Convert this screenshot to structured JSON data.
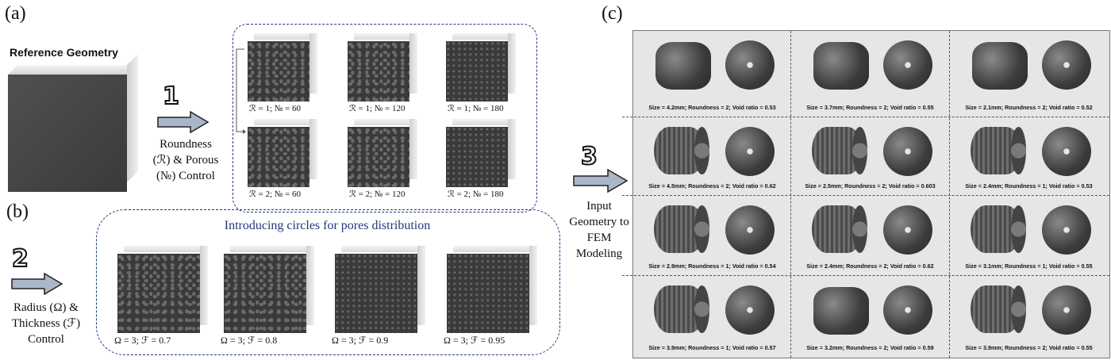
{
  "panels": {
    "a": "(a)",
    "b": "(b)",
    "c": "(c)"
  },
  "reference_title": "Reference Geometry",
  "step1": {
    "num": "1",
    "line1": "Roundness",
    "line2": "(ℛ) & Porous",
    "line3": "(№) Control"
  },
  "step2": {
    "num": "2",
    "line1": "Radius (Ω) &",
    "line2": "Thickness (ℱ)",
    "line3": "Control"
  },
  "step3": {
    "num": "3",
    "line1": "Input",
    "line2": "Geometry to",
    "line3": "FEM",
    "line4": "Modeling"
  },
  "grid_a": [
    "ℛ = 1; № = 60",
    "ℛ = 1; № = 120",
    "ℛ = 1; № = 180",
    "ℛ = 2; № = 60",
    "ℛ = 2; № = 120",
    "ℛ = 2; № = 180"
  ],
  "panel_b_title": "Introducing circles for pores distribution",
  "grid_b": [
    "Ω = 3; ℱ = 0.7",
    "Ω = 3; ℱ = 0.8",
    "Ω = 3; ℱ = 0.9",
    "Ω = 3; ℱ = 0.95"
  ],
  "grid_c": [
    "Size = 4.2mm; Roundness = 2; Void ratio = 0.53",
    "Size = 3.7mm; Roundness = 2; Void ratio = 0.55",
    "Size = 2.1mm; Roundness = 2; Void ratio = 0.52",
    "Size = 4.5mm; Roundness = 2; Void ratio = 0.62",
    "Size = 2.5mm; Roundness = 2; Void ratio = 0.603",
    "Size = 2.4mm; Roundness = 1; Void ratio = 0.53",
    "Size = 2.9mm; Roundness = 1; Void ratio = 0.54",
    "Size = 2.4mm; Roundness = 2; Void ratio = 0.62",
    "Size = 3.1mm; Roundness = 1; Void ratio = 0.55",
    "Size = 3.9mm; Roundness = 1; Void ratio = 0.57",
    "Size = 3.2mm; Roundness = 2; Void ratio = 0.59",
    "Size = 3.9mm; Roundness = 2; Void ratio = 0.55"
  ]
}
